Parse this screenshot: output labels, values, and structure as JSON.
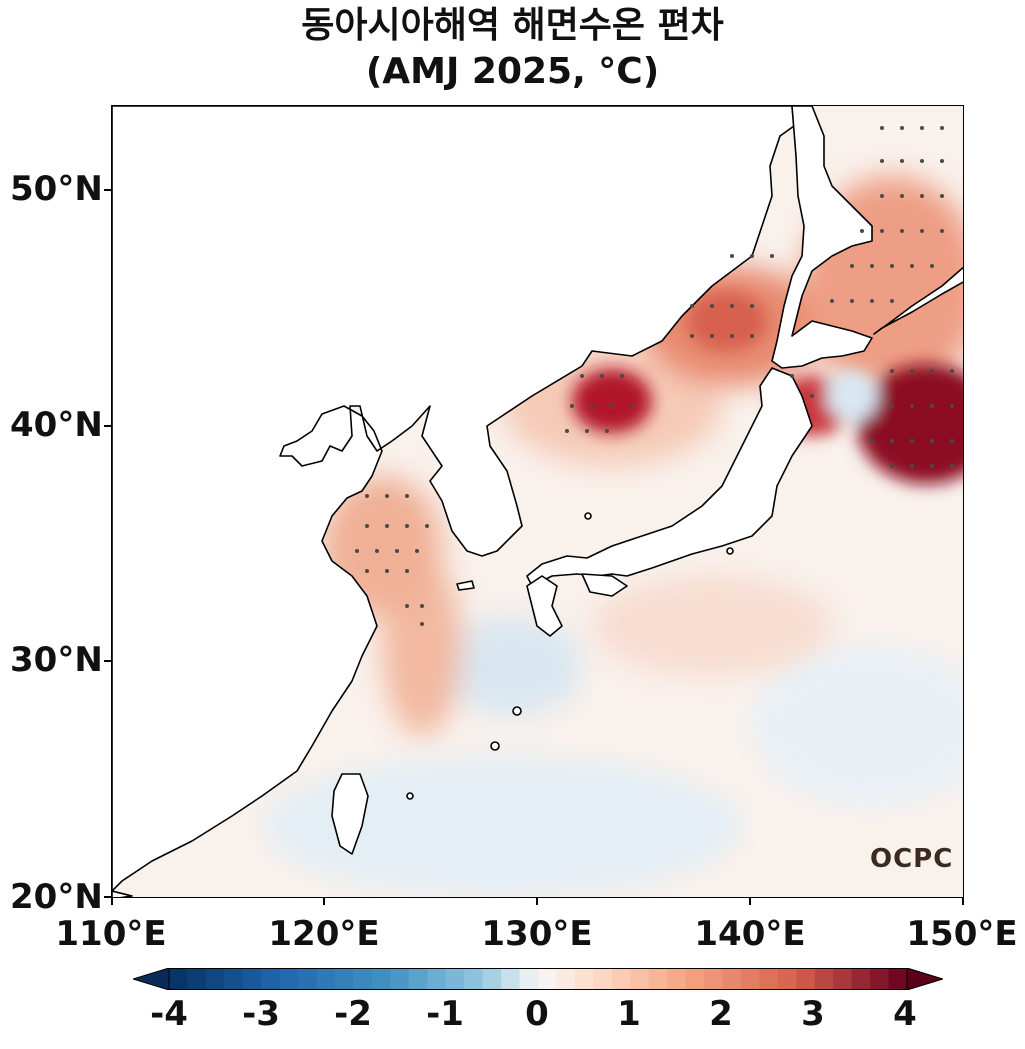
{
  "title": "동아시아해역 해면수온 편차",
  "subtitle": "(AMJ 2025, °C)",
  "map": {
    "y_labels": [
      "50°N",
      "40°N",
      "30°N",
      "20°N"
    ],
    "x_labels": [
      "110°E",
      "120°E",
      "130°E",
      "140°E",
      "150°E"
    ],
    "extent": {
      "lon": [
        110,
        150
      ],
      "lat": [
        20,
        53.5
      ]
    },
    "logo_text": "OCPC"
  },
  "colorbar": {
    "labels": [
      "-4",
      "-3",
      "-2",
      "-1",
      "0",
      "1",
      "2",
      "3",
      "4"
    ],
    "range": [
      -4,
      4
    ],
    "colors": {
      "min": "#0a3466",
      "neg": "#4292c6",
      "zero": "#f7f7f7",
      "pos": "#f4a582",
      "max": "#67001f"
    }
  }
}
